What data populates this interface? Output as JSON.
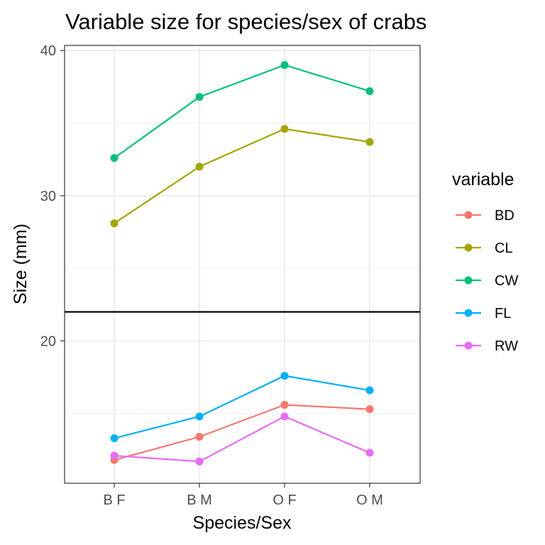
{
  "chart_data": {
    "type": "line",
    "title": "Variable size for species/sex of crabs",
    "xlabel": "Species/Sex",
    "ylabel": "Size (mm)",
    "categories": [
      "B F",
      "B M",
      "O F",
      "O M"
    ],
    "ylim": [
      10.2,
      40.35
    ],
    "y_ticks": [
      20,
      30,
      40
    ],
    "y_tick_labels": [
      "20",
      "30",
      "40"
    ],
    "reference_line_y": 22,
    "grid": true,
    "legend_title": "variable",
    "legend_position": "right",
    "series": [
      {
        "name": "BD",
        "color": "#F8766D",
        "values": [
          11.8,
          13.4,
          15.6,
          15.3
        ]
      },
      {
        "name": "CL",
        "color": "#A3A500",
        "values": [
          28.1,
          32.0,
          34.6,
          33.7
        ]
      },
      {
        "name": "CW",
        "color": "#00BF7D",
        "values": [
          32.6,
          36.8,
          39.0,
          37.2
        ]
      },
      {
        "name": "FL",
        "color": "#00B0F6",
        "values": [
          13.3,
          14.8,
          17.6,
          16.6
        ]
      },
      {
        "name": "RW",
        "color": "#E76BF3",
        "values": [
          12.1,
          11.7,
          14.8,
          12.3
        ]
      }
    ]
  }
}
